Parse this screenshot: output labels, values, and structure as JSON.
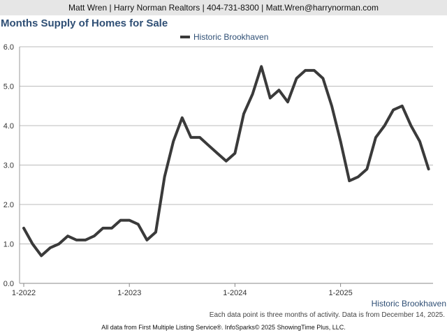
{
  "header": {
    "contact": "Matt Wren | Harry Norman Realtors | 404-731-8300 | Matt.Wren@harrynorman.com"
  },
  "colors": {
    "line": "#3a3a3a",
    "title": "#2f4f75",
    "grid": "#bbbbbb",
    "header_bg": "#e6e6e6"
  },
  "chart_data": {
    "type": "line",
    "title": "Months Supply of Homes for Sale",
    "xlabel": "",
    "ylabel": "",
    "ylim": [
      0,
      6
    ],
    "yticks": [
      "0.0",
      "1.0",
      "2.0",
      "3.0",
      "4.0",
      "5.0",
      "6.0"
    ],
    "xticks": [
      "1-2022",
      "1-2023",
      "1-2024",
      "1-2025"
    ],
    "xtick_index": [
      0,
      12,
      24,
      36
    ],
    "grid": true,
    "legend_position": "top-center",
    "series": [
      {
        "name": "Historic Brookhaven",
        "values": [
          1.4,
          1.0,
          0.7,
          0.9,
          1.0,
          1.2,
          1.1,
          1.1,
          1.2,
          1.4,
          1.4,
          1.6,
          1.6,
          1.5,
          1.1,
          1.3,
          2.7,
          3.6,
          4.2,
          3.7,
          3.7,
          3.5,
          3.3,
          3.1,
          3.3,
          4.3,
          4.8,
          5.5,
          4.7,
          4.9,
          4.6,
          5.2,
          5.4,
          5.4,
          5.2,
          4.5,
          3.6,
          2.6,
          2.7,
          2.9,
          3.7,
          4.0,
          4.4,
          4.5,
          4.0,
          3.6,
          2.9
        ]
      }
    ]
  },
  "footer": {
    "series_label": "Historic Brookhaven",
    "note": "Each data point is three months of activity. Data is from December 14, 2025.",
    "source": "All data from First Multiple Listing Service®. InfoSparks© 2025 ShowingTime Plus, LLC."
  }
}
